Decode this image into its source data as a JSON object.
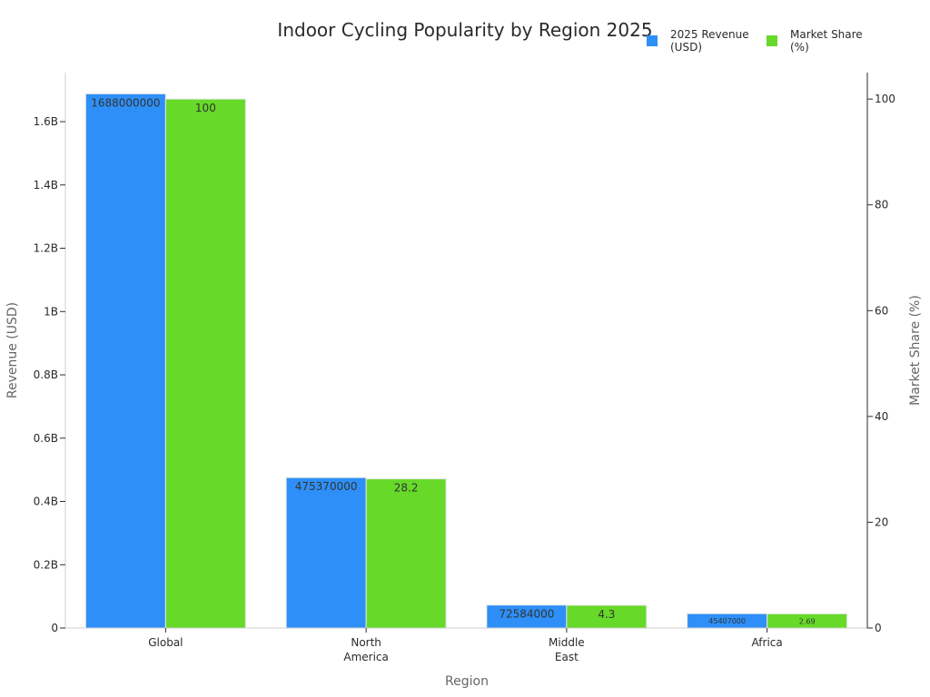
{
  "chart_data": {
    "type": "bar",
    "title": "Indoor Cycling Popularity by Region 2025",
    "xlabel": "Region",
    "ylabel": "Revenue (USD)",
    "y2label": "Market Share (%)",
    "categories": [
      [
        "Global"
      ],
      [
        "North",
        "America"
      ],
      [
        "Middle",
        "East"
      ],
      [
        "Africa"
      ]
    ],
    "series": [
      {
        "name": [
          "2025 Revenue",
          "(USD)"
        ],
        "axis": "left",
        "color": "#2d8ff7",
        "values": [
          1688000000,
          475370000,
          72584000,
          45407000
        ],
        "labels": [
          "1688000000",
          "475370000",
          "72584000",
          "45407000"
        ]
      },
      {
        "name": [
          "Market Share",
          "(%)"
        ],
        "axis": "right",
        "color": "#66d929",
        "values": [
          100,
          28.2,
          4.3,
          2.69
        ],
        "labels": [
          "100",
          "28.2",
          "4.3",
          "2.69"
        ]
      }
    ],
    "ylim": [
      0,
      1755000000
    ],
    "y2lim": [
      0,
      105
    ],
    "yticks": [
      {
        "value": 0,
        "label": "0"
      },
      {
        "value": 200000000,
        "label": "0.2B"
      },
      {
        "value": 400000000,
        "label": "0.4B"
      },
      {
        "value": 600000000,
        "label": "0.6B"
      },
      {
        "value": 800000000,
        "label": "0.8B"
      },
      {
        "value": 1000000000,
        "label": "1B"
      },
      {
        "value": 1200000000,
        "label": "1.2B"
      },
      {
        "value": 1400000000,
        "label": "1.4B"
      },
      {
        "value": 1600000000,
        "label": "1.6B"
      }
    ],
    "y2ticks": [
      {
        "value": 0,
        "label": "0"
      },
      {
        "value": 20,
        "label": "20"
      },
      {
        "value": 40,
        "label": "40"
      },
      {
        "value": 60,
        "label": "60"
      },
      {
        "value": 80,
        "label": "80"
      },
      {
        "value": 100,
        "label": "100"
      }
    ],
    "legend_position": "top-right",
    "grid": false
  }
}
